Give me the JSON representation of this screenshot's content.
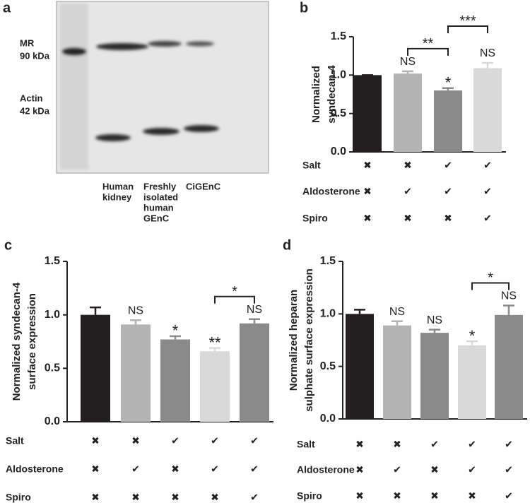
{
  "blot": {
    "panel_label": "a",
    "band_labels": [
      [
        "MR",
        "90 kDa"
      ],
      [
        "Actin",
        "42 kDa"
      ]
    ],
    "lanes": [
      [
        "Human",
        "kidney"
      ],
      [
        "Freshly",
        "isolated",
        "human",
        "GEnC"
      ],
      [
        "CiGEnC"
      ]
    ]
  },
  "chart_data": [
    {
      "type": "bar",
      "panel_label": "b",
      "ylabel": [
        "Normalized",
        "syndecan-4"
      ],
      "values": [
        1.0,
        1.02,
        0.8,
        1.09
      ],
      "errors": [
        0,
        0.03,
        0.03,
        0.07
      ],
      "colors": [
        "#231f20",
        "#b3b3b3",
        "#8a8a8a",
        "#d9d9d9"
      ],
      "annotations": [
        null,
        "NS",
        "*",
        "NS"
      ],
      "brackets": [
        {
          "bars": [
            1,
            2
          ],
          "label": "**"
        },
        {
          "bars": [
            2,
            3
          ],
          "label": "***"
        }
      ],
      "ylim": [
        0,
        1.5
      ],
      "yticks": [
        {
          "value": 0,
          "label": "0.0"
        },
        {
          "value": 0.5,
          "label": "0.5"
        },
        {
          "value": 1,
          "label": "1.0"
        },
        {
          "value": 1.5,
          "label": "1.5"
        }
      ],
      "conditions": {
        "rows": [
          "Salt",
          "Aldosterone",
          "Spiro"
        ],
        "marks": [
          [
            "✖",
            "✖",
            "✔",
            "✔"
          ],
          [
            "✖",
            "✔",
            "✔",
            "✔"
          ],
          [
            "✖",
            "✖",
            "✖",
            "✔"
          ]
        ]
      }
    },
    {
      "type": "bar",
      "panel_label": "c",
      "ylabel": [
        "Normalized syndecan-4",
        "surface expression"
      ],
      "values": [
        1.0,
        0.91,
        0.77,
        0.66,
        0.92
      ],
      "errors": [
        0.07,
        0.04,
        0.03,
        0.03,
        0.04
      ],
      "colors": [
        "#231f20",
        "#b3b3b3",
        "#8a8a8a",
        "#d9d9d9",
        "#8a8a8a"
      ],
      "annotations": [
        null,
        "NS",
        "*",
        "**",
        "NS"
      ],
      "brackets": [
        {
          "bars": [
            3,
            4
          ],
          "label": "*"
        }
      ],
      "ylim": [
        0,
        1.5
      ],
      "yticks": [
        {
          "value": 0,
          "label": "0.0"
        },
        {
          "value": 0.5,
          "label": "0.5"
        },
        {
          "value": 1,
          "label": "1.0"
        },
        {
          "value": 1.5,
          "label": "1.5"
        }
      ],
      "conditions": {
        "rows": [
          "Salt",
          "Aldosterone",
          "Spiro"
        ],
        "marks": [
          [
            "✖",
            "✖",
            "✔",
            "✔",
            "✔"
          ],
          [
            "✖",
            "✔",
            "✖",
            "✔",
            "✔"
          ],
          [
            "✖",
            "✖",
            "✖",
            "✖",
            "✔"
          ]
        ]
      }
    },
    {
      "type": "bar",
      "panel_label": "d",
      "ylabel": [
        "Normalized heparan",
        "sulphate surface expression"
      ],
      "values": [
        1.0,
        0.89,
        0.82,
        0.7,
        0.99
      ],
      "errors": [
        0.04,
        0.04,
        0.03,
        0.04,
        0.09
      ],
      "colors": [
        "#231f20",
        "#b3b3b3",
        "#8a8a8a",
        "#d9d9d9",
        "#8a8a8a"
      ],
      "annotations": [
        null,
        "NS",
        "NS",
        "*",
        "NS"
      ],
      "brackets": [
        {
          "bars": [
            3,
            4
          ],
          "label": "*"
        }
      ],
      "ylim": [
        0,
        1.5
      ],
      "yticks": [
        {
          "value": 0,
          "label": "0.0"
        },
        {
          "value": 0.5,
          "label": "0.5"
        },
        {
          "value": 1,
          "label": "1.0"
        },
        {
          "value": 1.5,
          "label": "1.5"
        }
      ],
      "conditions": {
        "rows": [
          "Salt",
          "Aldosterone",
          "Spiro"
        ],
        "marks": [
          [
            "✖",
            "✖",
            "✔",
            "✔",
            "✔"
          ],
          [
            "✖",
            "✔",
            "✖",
            "✔",
            "✔"
          ],
          [
            "✖",
            "✖",
            "✖",
            "✖",
            "✔"
          ]
        ]
      }
    }
  ]
}
